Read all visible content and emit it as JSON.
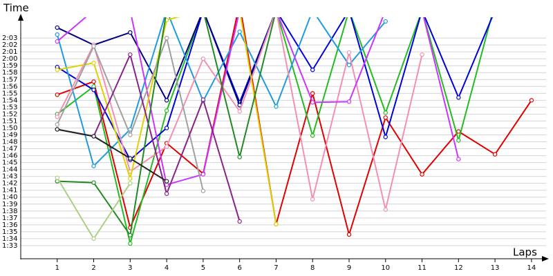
{
  "chart_data": {
    "type": "line",
    "y_label": "Time",
    "x_label": "Laps",
    "x": [
      1,
      2,
      3,
      4,
      5,
      6,
      7,
      8,
      9,
      10,
      11,
      12,
      13,
      14
    ],
    "xlim": [
      0,
      14.4
    ],
    "xticks": [
      1,
      2,
      3,
      4,
      5,
      6,
      7,
      8,
      9,
      10,
      11,
      12,
      13,
      14
    ],
    "ylim": [
      91,
      126
    ],
    "yticks": [
      {
        "value": 93,
        "label": "1:33"
      },
      {
        "value": 94,
        "label": "1:34"
      },
      {
        "value": 95,
        "label": "1:35"
      },
      {
        "value": 96,
        "label": "1:36"
      },
      {
        "value": 97,
        "label": "1:37"
      },
      {
        "value": 98,
        "label": "1:38"
      },
      {
        "value": 99,
        "label": "1:39"
      },
      {
        "value": 100,
        "label": "1:40"
      },
      {
        "value": 101,
        "label": "1:41"
      },
      {
        "value": 102,
        "label": "1:42"
      },
      {
        "value": 103,
        "label": "1:43"
      },
      {
        "value": 104,
        "label": "1:44"
      },
      {
        "value": 105,
        "label": "1:45"
      },
      {
        "value": 106,
        "label": "1:46"
      },
      {
        "value": 107,
        "label": "1:47"
      },
      {
        "value": 108,
        "label": "1:48"
      },
      {
        "value": 109,
        "label": "1:49"
      },
      {
        "value": 110,
        "label": "1:50"
      },
      {
        "value": 111,
        "label": "1:51"
      },
      {
        "value": 112,
        "label": "1:52"
      },
      {
        "value": 113,
        "label": "1:53"
      },
      {
        "value": 114,
        "label": "1:54"
      },
      {
        "value": 115,
        "label": "1:55"
      },
      {
        "value": 116,
        "label": "1:56"
      },
      {
        "value": 117,
        "label": "1:57"
      },
      {
        "value": 118,
        "label": "1:58"
      },
      {
        "value": 119,
        "label": "1:59"
      },
      {
        "value": 120,
        "label": "2:00"
      },
      {
        "value": 121,
        "label": "2:01"
      },
      {
        "value": 122,
        "label": "2:02"
      },
      {
        "value": 123,
        "label": "2:03"
      }
    ],
    "grid": true,
    "series": [
      {
        "color": "#e00000",
        "values": [
          114.8,
          116.7,
          95.6,
          107.8,
          103.4,
          128,
          96.1,
          115.0,
          94.6,
          111.5,
          103.3,
          109.5,
          106.2,
          114.0
        ]
      },
      {
        "color": "#22bb22",
        "values": [
          112.0,
          116.0,
          93.3,
          112.5,
          127,
          127,
          127,
          108.9,
          127,
          112.2,
          127,
          108.2,
          128,
          null
        ]
      },
      {
        "color": "#0000dd",
        "values": [
          118.8,
          115.5,
          105.4,
          110.0,
          127,
          113.7,
          127,
          118.4,
          127,
          108.7,
          127,
          114.4,
          127,
          null
        ]
      },
      {
        "color": "#000080",
        "values": [
          124.5,
          122.0,
          123.8,
          114.0,
          127,
          113.3,
          127,
          null,
          null,
          null,
          null,
          null,
          null,
          null
        ]
      },
      {
        "color": "#1e9be0",
        "values": [
          123.5,
          104.5,
          109.8,
          127,
          113.9,
          123.9,
          113.1,
          127,
          119.1,
          125.4,
          null,
          null,
          null,
          null
        ]
      },
      {
        "color": "#f48fb1",
        "values": [
          111.6,
          122.0,
          103.7,
          107.3,
          120.0,
          112.4,
          127,
          99.7,
          120.9,
          98.2,
          120.6,
          null,
          null,
          null
        ]
      },
      {
        "color": "#cc33ff",
        "values": [
          122.5,
          127,
          127,
          101.8,
          103.3,
          127,
          127,
          113.7,
          113.8,
          127,
          127,
          105.5,
          null,
          null
        ]
      },
      {
        "color": "#e0d000",
        "values": [
          118.4,
          119.4,
          102.7,
          125.6,
          127,
          127,
          96.1,
          null,
          null,
          null,
          null,
          null,
          null,
          null
        ]
      },
      {
        "color": "#a0a0a0",
        "values": [
          110.5,
          121.8,
          109.0,
          123.0,
          100.9,
          null,
          null,
          null,
          null,
          null,
          null,
          null,
          null,
          null
        ]
      },
      {
        "color": "#882288",
        "values": [
          109.8,
          108.8,
          120.6,
          100.5,
          114.1,
          96.5,
          null,
          null,
          null,
          null,
          null,
          null,
          null,
          null
        ]
      },
      {
        "color": "#228822",
        "values": [
          102.3,
          102.1,
          94.5,
          127,
          127,
          105.8,
          127,
          null,
          null,
          null,
          null,
          null,
          null,
          null
        ]
      },
      {
        "color": "#aad080",
        "values": [
          102.8,
          94.0,
          102.0,
          null,
          null,
          null,
          null,
          null,
          null,
          null,
          null,
          null,
          null,
          null
        ]
      },
      {
        "color": "#222222",
        "values": [
          109.8,
          108.8,
          105.6,
          102.3,
          null,
          null,
          null,
          null,
          null,
          null,
          null,
          null,
          null,
          null
        ]
      }
    ]
  }
}
